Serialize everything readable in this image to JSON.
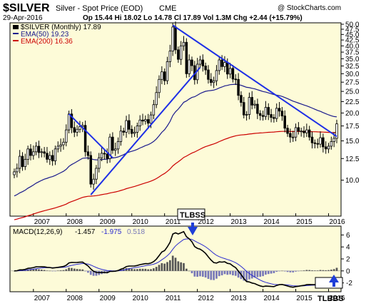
{
  "header": {
    "symbol": "$SILVER",
    "description": "Silver - Spot Price (EOD)",
    "exchange": "CME",
    "date": "29-Apr-2016",
    "watermark": "@ StockCharts.com",
    "ohlc": "Op 15.44  Hi 18.02  Lo 14.78  Cl 17.89  Vol 1.3M  Chg +2.44 (+15.79%)"
  },
  "legend": {
    "price": "$SILVER (Monthly) 17.89",
    "ema50": "EMA(50) 19.23",
    "ema200": "EMA(200) 16.36"
  },
  "macd_label": {
    "main": "MACD(12,26,9)",
    "macd": "-1.457",
    "signal": "-1.975",
    "hist": "0.518"
  },
  "annotations": {
    "top": "TLBSS",
    "bottom": "TLBBS"
  },
  "colors": {
    "bg": "#fdfbd8",
    "ema50": "#1a1a8c",
    "ema200": "#cc0000",
    "trendline": "#1e2fe6",
    "candle": "#000000",
    "hist": "#7777b8"
  },
  "chart_data": [
    {
      "type": "candlestick",
      "title": "$SILVER Silver - Spot Price (EOD) CME",
      "ylim": [
        7,
        50
      ],
      "y_scale": "log",
      "y_ticks": [
        10.0,
        12.5,
        15.0,
        17.5,
        20.0,
        22.5,
        25.0,
        27.5,
        30.0,
        32.5,
        35.0,
        37.5,
        40.0,
        42.5,
        45.0,
        47.5,
        50.0
      ],
      "x_ticks": [
        "2007",
        "2008",
        "2009",
        "2010",
        "2011",
        "2012",
        "2013",
        "2014",
        "2015",
        "2016"
      ],
      "grid": false,
      "legend_position": "top-left",
      "close_series": [
        {
          "period": "2006-06",
          "close": 10.9
        },
        {
          "period": "2006-07",
          "close": 11.3
        },
        {
          "period": "2006-08",
          "close": 12.8
        },
        {
          "period": "2006-09",
          "close": 11.5
        },
        {
          "period": "2006-10",
          "close": 12.4
        },
        {
          "period": "2006-11",
          "close": 13.8
        },
        {
          "period": "2006-12",
          "close": 12.9
        },
        {
          "period": "2007-01",
          "close": 13.4
        },
        {
          "period": "2007-02",
          "close": 14.2
        },
        {
          "period": "2007-03",
          "close": 13.3
        },
        {
          "period": "2007-04",
          "close": 13.4
        },
        {
          "period": "2007-05",
          "close": 13.2
        },
        {
          "period": "2007-06",
          "close": 12.4
        },
        {
          "period": "2007-07",
          "close": 12.9
        },
        {
          "period": "2007-08",
          "close": 12.2
        },
        {
          "period": "2007-09",
          "close": 13.8
        },
        {
          "period": "2007-10",
          "close": 14.2
        },
        {
          "period": "2007-11",
          "close": 14.4
        },
        {
          "period": "2007-12",
          "close": 14.8
        },
        {
          "period": "2008-01",
          "close": 16.8
        },
        {
          "period": "2008-02",
          "close": 19.8
        },
        {
          "period": "2008-03",
          "close": 17.2
        },
        {
          "period": "2008-04",
          "close": 16.4
        },
        {
          "period": "2008-05",
          "close": 16.9
        },
        {
          "period": "2008-06",
          "close": 17.4
        },
        {
          "period": "2008-07",
          "close": 17.6
        },
        {
          "period": "2008-08",
          "close": 13.4
        },
        {
          "period": "2008-09",
          "close": 12.9
        },
        {
          "period": "2008-10",
          "close": 9.6
        },
        {
          "period": "2008-11",
          "close": 10.1
        },
        {
          "period": "2008-12",
          "close": 11.3
        },
        {
          "period": "2009-01",
          "close": 12.6
        },
        {
          "period": "2009-02",
          "close": 13.2
        },
        {
          "period": "2009-03",
          "close": 13.1
        },
        {
          "period": "2009-04",
          "close": 12.5
        },
        {
          "period": "2009-05",
          "close": 15.6
        },
        {
          "period": "2009-06",
          "close": 13.6
        },
        {
          "period": "2009-07",
          "close": 13.8
        },
        {
          "period": "2009-08",
          "close": 14.9
        },
        {
          "period": "2009-09",
          "close": 16.6
        },
        {
          "period": "2009-10",
          "close": 16.4
        },
        {
          "period": "2009-11",
          "close": 18.5
        },
        {
          "period": "2009-12",
          "close": 16.9
        },
        {
          "period": "2010-01",
          "close": 16.2
        },
        {
          "period": "2010-02",
          "close": 16.4
        },
        {
          "period": "2010-03",
          "close": 17.5
        },
        {
          "period": "2010-04",
          "close": 18.6
        },
        {
          "period": "2010-05",
          "close": 18.4
        },
        {
          "period": "2010-06",
          "close": 18.7
        },
        {
          "period": "2010-07",
          "close": 18.0
        },
        {
          "period": "2010-08",
          "close": 19.6
        },
        {
          "period": "2010-09",
          "close": 21.8
        },
        {
          "period": "2010-10",
          "close": 24.7
        },
        {
          "period": "2010-11",
          "close": 28.3
        },
        {
          "period": "2010-12",
          "close": 30.6
        },
        {
          "period": "2011-01",
          "close": 27.9
        },
        {
          "period": "2011-02",
          "close": 34.0
        },
        {
          "period": "2011-03",
          "close": 37.9
        },
        {
          "period": "2011-04",
          "close": 48.6
        },
        {
          "period": "2011-05",
          "close": 38.4
        },
        {
          "period": "2011-06",
          "close": 34.8
        },
        {
          "period": "2011-07",
          "close": 40.0
        },
        {
          "period": "2011-08",
          "close": 41.5
        },
        {
          "period": "2011-09",
          "close": 30.0
        },
        {
          "period": "2011-10",
          "close": 34.6
        },
        {
          "period": "2011-11",
          "close": 32.6
        },
        {
          "period": "2011-12",
          "close": 28.2
        },
        {
          "period": "2012-01",
          "close": 33.1
        },
        {
          "period": "2012-02",
          "close": 34.6
        },
        {
          "period": "2012-03",
          "close": 32.5
        },
        {
          "period": "2012-04",
          "close": 31.2
        },
        {
          "period": "2012-05",
          "close": 28.3
        },
        {
          "period": "2012-06",
          "close": 27.4
        },
        {
          "period": "2012-07",
          "close": 27.9
        },
        {
          "period": "2012-08",
          "close": 31.0
        },
        {
          "period": "2012-09",
          "close": 34.6
        },
        {
          "period": "2012-10",
          "close": 32.3
        },
        {
          "period": "2012-11",
          "close": 33.7
        },
        {
          "period": "2012-12",
          "close": 29.9
        },
        {
          "period": "2013-01",
          "close": 31.7
        },
        {
          "period": "2013-02",
          "close": 28.4
        },
        {
          "period": "2013-03",
          "close": 28.3
        },
        {
          "period": "2013-04",
          "close": 24.0
        },
        {
          "period": "2013-05",
          "close": 22.3
        },
        {
          "period": "2013-06",
          "close": 19.6
        },
        {
          "period": "2013-07",
          "close": 19.7
        },
        {
          "period": "2013-08",
          "close": 23.5
        },
        {
          "period": "2013-09",
          "close": 21.7
        },
        {
          "period": "2013-10",
          "close": 21.9
        },
        {
          "period": "2013-11",
          "close": 19.9
        },
        {
          "period": "2013-12",
          "close": 19.5
        },
        {
          "period": "2014-01",
          "close": 19.3
        },
        {
          "period": "2014-02",
          "close": 21.2
        },
        {
          "period": "2014-03",
          "close": 19.7
        },
        {
          "period": "2014-04",
          "close": 19.1
        },
        {
          "period": "2014-05",
          "close": 18.9
        },
        {
          "period": "2014-06",
          "close": 21.0
        },
        {
          "period": "2014-07",
          "close": 20.4
        },
        {
          "period": "2014-08",
          "close": 19.4
        },
        {
          "period": "2014-09",
          "close": 17.1
        },
        {
          "period": "2014-10",
          "close": 16.2
        },
        {
          "period": "2014-11",
          "close": 15.6
        },
        {
          "period": "2014-12",
          "close": 15.6
        },
        {
          "period": "2015-01",
          "close": 17.2
        },
        {
          "period": "2015-02",
          "close": 16.6
        },
        {
          "period": "2015-03",
          "close": 16.6
        },
        {
          "period": "2015-04",
          "close": 16.3
        },
        {
          "period": "2015-05",
          "close": 16.8
        },
        {
          "period": "2015-06",
          "close": 15.6
        },
        {
          "period": "2015-07",
          "close": 14.7
        },
        {
          "period": "2015-08",
          "close": 14.6
        },
        {
          "period": "2015-09",
          "close": 14.5
        },
        {
          "period": "2015-10",
          "close": 15.5
        },
        {
          "period": "2015-11",
          "close": 14.1
        },
        {
          "period": "2015-12",
          "close": 13.8
        },
        {
          "period": "2016-01",
          "close": 14.2
        },
        {
          "period": "2016-02",
          "close": 14.9
        },
        {
          "period": "2016-03",
          "close": 15.4
        },
        {
          "period": "2016-04",
          "close": 17.89
        }
      ],
      "series": [
        {
          "name": "EMA(50)",
          "last": 19.23
        },
        {
          "name": "EMA(200)",
          "last": 16.36
        }
      ]
    },
    {
      "type": "line",
      "title": "MACD(12,26,9)",
      "ylim": [
        -3,
        7
      ],
      "y_ticks": [
        -2,
        0,
        2,
        4,
        6
      ],
      "x_ticks": [
        "2007",
        "2008",
        "2009",
        "2010",
        "2011",
        "2012",
        "2013",
        "2014",
        "2015",
        "2016"
      ],
      "series": [
        {
          "name": "MACD",
          "last": -1.457
        },
        {
          "name": "Signal",
          "last": -1.975
        },
        {
          "name": "Histogram",
          "last": 0.518
        }
      ]
    }
  ]
}
